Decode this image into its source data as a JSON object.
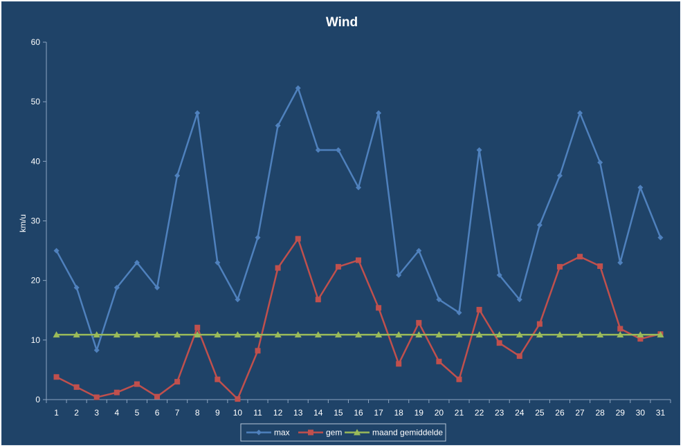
{
  "chart_data": {
    "type": "line",
    "title": "Wind",
    "xlabel": "",
    "ylabel": "km/u",
    "ylim": [
      0,
      60
    ],
    "yticks": [
      0,
      10,
      20,
      30,
      40,
      50,
      60
    ],
    "grid": false,
    "legend_position": "bottom",
    "categories": [
      "1",
      "2",
      "3",
      "4",
      "5",
      "6",
      "7",
      "8",
      "9",
      "10",
      "11",
      "12",
      "13",
      "14",
      "15",
      "16",
      "17",
      "18",
      "19",
      "20",
      "21",
      "22",
      "23",
      "24",
      "25",
      "26",
      "27",
      "28",
      "29",
      "30",
      "31"
    ],
    "series": [
      {
        "name": "max",
        "color": "#4f81bd",
        "marker": "diamond",
        "values": [
          25.0,
          18.8,
          8.3,
          18.8,
          23.0,
          18.8,
          37.6,
          48.1,
          23.0,
          16.8,
          27.2,
          46.0,
          52.3,
          41.9,
          41.9,
          35.6,
          48.1,
          20.9,
          25.0,
          16.8,
          14.6,
          41.9,
          20.9,
          16.8,
          29.3,
          37.6,
          48.1,
          39.8,
          23.0,
          35.6,
          27.2
        ]
      },
      {
        "name": "gem",
        "color": "#c0504d",
        "marker": "square",
        "values": [
          3.8,
          2.1,
          0.4,
          1.2,
          2.6,
          0.5,
          3.0,
          12.1,
          3.4,
          0.1,
          8.2,
          22.1,
          27.0,
          16.8,
          22.3,
          23.4,
          15.4,
          6.0,
          12.9,
          6.4,
          3.4,
          15.1,
          9.5,
          7.3,
          12.7,
          22.3,
          24.0,
          22.4,
          11.9,
          10.2,
          11.0
        ]
      },
      {
        "name": "maand gemiddelde",
        "color": "#9bbb59",
        "marker": "triangle",
        "values": [
          10.9,
          10.9,
          10.9,
          10.9,
          10.9,
          10.9,
          10.9,
          10.9,
          10.9,
          10.9,
          10.9,
          10.9,
          10.9,
          10.9,
          10.9,
          10.9,
          10.9,
          10.9,
          10.9,
          10.9,
          10.9,
          10.9,
          10.9,
          10.9,
          10.9,
          10.9,
          10.9,
          10.9,
          10.9,
          10.9,
          10.9
        ]
      }
    ]
  }
}
